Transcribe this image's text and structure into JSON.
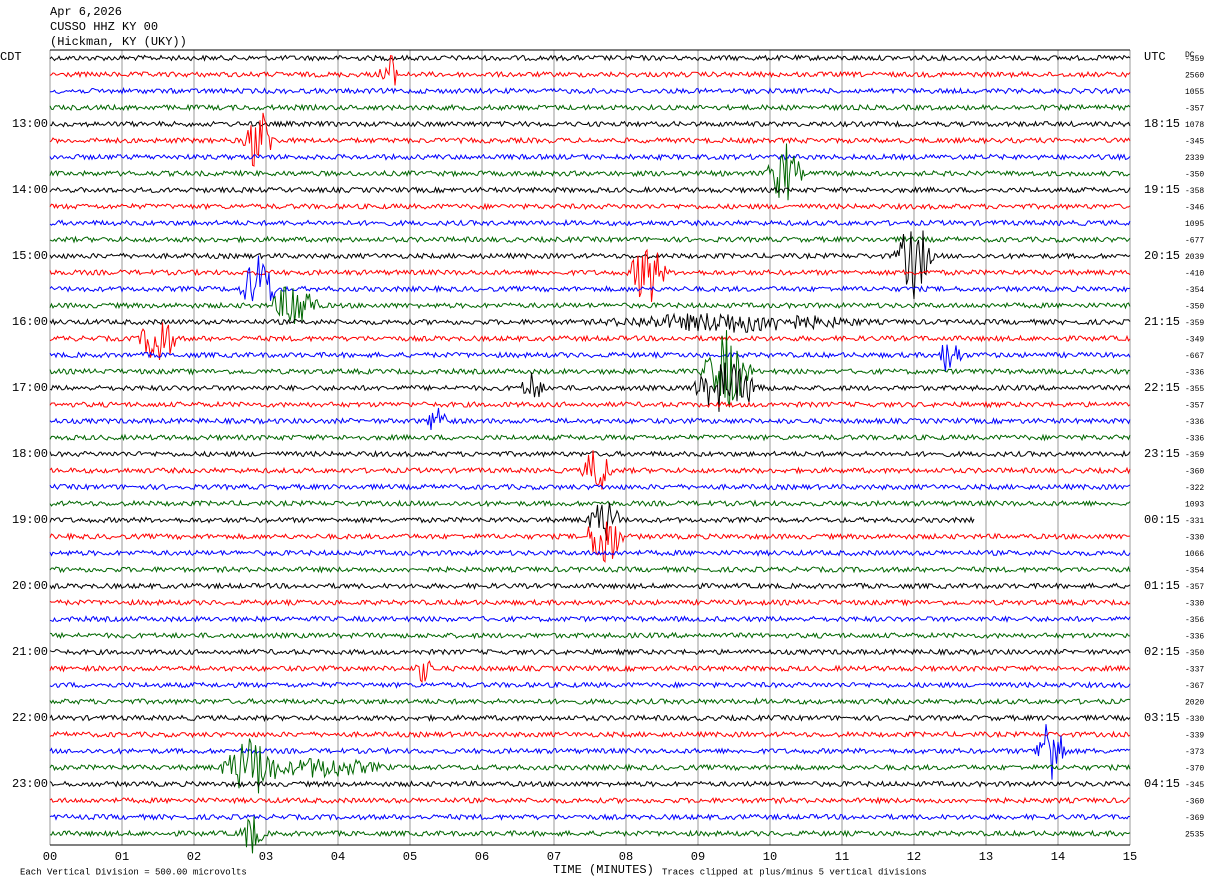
{
  "header": {
    "date": "Apr 6,2026",
    "station": "CUSSO HHZ KY 00",
    "location": "(Hickman, KY (UKY))"
  },
  "left_axis": {
    "title": "CDT",
    "labels": [
      "13:00",
      "14:00",
      "15:00",
      "16:00",
      "17:00",
      "18:00",
      "19:00",
      "20:00",
      "21:00",
      "22:00",
      "23:00"
    ]
  },
  "right_axis": {
    "title": "UTC",
    "labels": [
      "18:15",
      "19:15",
      "20:15",
      "21:15",
      "22:15",
      "23:15",
      "00:15",
      "01:15",
      "02:15",
      "03:15",
      "04:15"
    ]
  },
  "dc_title": "DC",
  "dc_values": [
    -359,
    2560,
    1055,
    -357,
    1078,
    -345,
    2339,
    -350,
    -358,
    -346,
    1095,
    -677,
    2039,
    -410,
    -354,
    -350,
    -359,
    -349,
    -667,
    -336,
    -355,
    -357,
    -336,
    -336,
    -359,
    -360,
    -322,
    1093,
    -331,
    -330,
    1066,
    -354,
    -357,
    -330,
    -356,
    -336,
    -350,
    -337,
    -367,
    2020,
    -330,
    -339,
    -373,
    -370,
    -345,
    -360,
    -369,
    2535
  ],
  "x_axis": {
    "title": "TIME (MINUTES)",
    "labels": [
      "00",
      "01",
      "02",
      "03",
      "04",
      "05",
      "06",
      "07",
      "08",
      "09",
      "10",
      "11",
      "12",
      "13",
      "14",
      "15"
    ]
  },
  "footer": {
    "scale": "Each Vertical Division =  500.00 microvolts",
    "clip": "Traces clipped at plus/minus 5 vertical divisions"
  }
}
